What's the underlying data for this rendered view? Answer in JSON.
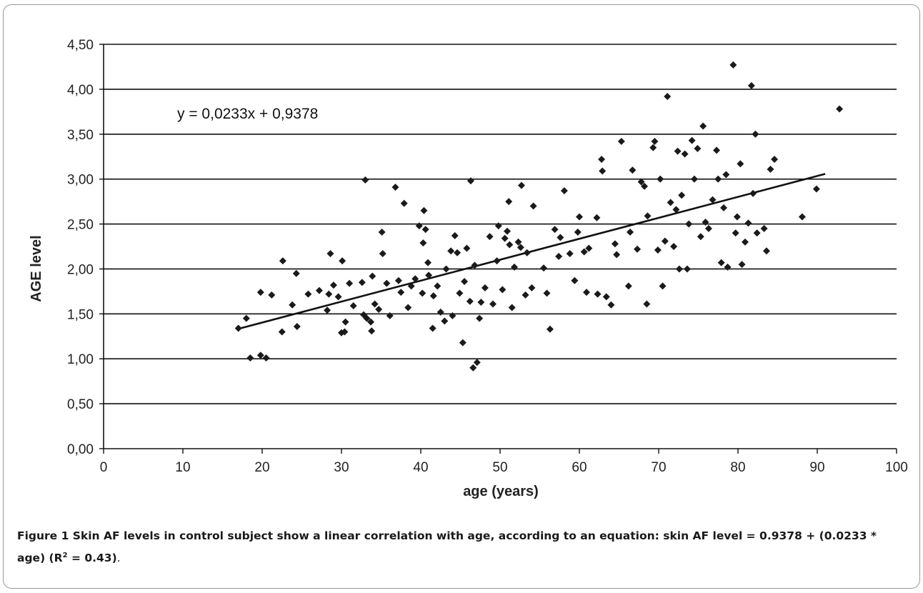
{
  "chart_data": {
    "type": "scatter",
    "xlabel": "age (years)",
    "ylabel": "AGE level",
    "xlim": [
      0,
      100
    ],
    "ylim": [
      0,
      4.5
    ],
    "xticks": [
      "0",
      "10",
      "20",
      "30",
      "40",
      "50",
      "60",
      "70",
      "80",
      "90",
      "100"
    ],
    "yticks": [
      "0,00",
      "0,50",
      "1,00",
      "1,50",
      "2,00",
      "2,50",
      "3,00",
      "3,50",
      "4,00",
      "4,50"
    ],
    "grid": "horizontal",
    "marker": "diamond",
    "marker_color": "#1a1a1a",
    "equation_label": "y = 0,0233x + 0,9378",
    "trendline": {
      "slope": 0.0233,
      "intercept": 0.9378,
      "x_range": [
        17,
        91
      ]
    },
    "points": [
      [
        17,
        1.34
      ],
      [
        18,
        1.45
      ],
      [
        18.5,
        1.01
      ],
      [
        19.8,
        1.04
      ],
      [
        20.5,
        1.01
      ],
      [
        19.8,
        1.74
      ],
      [
        21.2,
        1.71
      ],
      [
        22.5,
        1.3
      ],
      [
        22.6,
        2.09
      ],
      [
        23.8,
        1.6
      ],
      [
        24.4,
        1.36
      ],
      [
        24.3,
        1.95
      ],
      [
        25.8,
        1.72
      ],
      [
        27.2,
        1.76
      ],
      [
        28.2,
        1.54
      ],
      [
        28.4,
        1.72
      ],
      [
        28.6,
        2.17
      ],
      [
        29.0,
        1.82
      ],
      [
        29.6,
        1.69
      ],
      [
        30.1,
        2.09
      ],
      [
        30.0,
        1.29
      ],
      [
        30.5,
        1.41
      ],
      [
        30.4,
        1.3
      ],
      [
        31.0,
        1.84
      ],
      [
        31.5,
        1.59
      ],
      [
        32.6,
        1.85
      ],
      [
        32.8,
        1.49
      ],
      [
        33.0,
        2.99
      ],
      [
        33.2,
        1.45
      ],
      [
        33.7,
        1.41
      ],
      [
        33.8,
        1.31
      ],
      [
        33.9,
        1.92
      ],
      [
        34.2,
        1.61
      ],
      [
        34.7,
        1.55
      ],
      [
        35.1,
        2.41
      ],
      [
        35.2,
        2.17
      ],
      [
        35.7,
        1.84
      ],
      [
        36.1,
        1.48
      ],
      [
        36.8,
        2.91
      ],
      [
        37.2,
        1.87
      ],
      [
        37.5,
        1.74
      ],
      [
        37.9,
        2.73
      ],
      [
        38.4,
        1.57
      ],
      [
        38.8,
        1.81
      ],
      [
        39.3,
        1.89
      ],
      [
        39.8,
        2.48
      ],
      [
        40.2,
        1.73
      ],
      [
        40.3,
        2.29
      ],
      [
        40.6,
        2.44
      ],
      [
        40.4,
        2.65
      ],
      [
        40.9,
        2.07
      ],
      [
        41.0,
        1.93
      ],
      [
        41.5,
        1.34
      ],
      [
        41.6,
        1.7
      ],
      [
        42.1,
        1.81
      ],
      [
        42.5,
        1.52
      ],
      [
        43.0,
        1.42
      ],
      [
        43.2,
        2.0
      ],
      [
        43.8,
        2.2
      ],
      [
        44.0,
        1.48
      ],
      [
        44.3,
        2.37
      ],
      [
        44.6,
        2.18
      ],
      [
        44.9,
        1.73
      ],
      [
        45.3,
        1.18
      ],
      [
        45.5,
        1.86
      ],
      [
        45.8,
        2.23
      ],
      [
        46.2,
        1.64
      ],
      [
        46.3,
        2.98
      ],
      [
        46.6,
        0.9
      ],
      [
        46.8,
        2.04
      ],
      [
        47.1,
        0.96
      ],
      [
        47.4,
        1.45
      ],
      [
        47.6,
        1.63
      ],
      [
        48.1,
        1.79
      ],
      [
        48.7,
        2.36
      ],
      [
        49.1,
        1.61
      ],
      [
        49.6,
        2.09
      ],
      [
        49.8,
        2.48
      ],
      [
        50.3,
        1.77
      ],
      [
        50.6,
        2.34
      ],
      [
        50.9,
        2.42
      ],
      [
        51.1,
        2.75
      ],
      [
        51.2,
        2.27
      ],
      [
        51.5,
        1.57
      ],
      [
        51.8,
        2.02
      ],
      [
        52.3,
        2.3
      ],
      [
        52.6,
        2.24
      ],
      [
        52.7,
        2.93
      ],
      [
        53.2,
        1.71
      ],
      [
        53.4,
        2.18
      ],
      [
        54.0,
        1.79
      ],
      [
        54.2,
        2.7
      ],
      [
        55.5,
        2.01
      ],
      [
        55.9,
        1.73
      ],
      [
        56.3,
        1.33
      ],
      [
        56.9,
        2.44
      ],
      [
        57.4,
        2.14
      ],
      [
        57.6,
        2.35
      ],
      [
        58.1,
        2.87
      ],
      [
        58.8,
        2.17
      ],
      [
        59.4,
        1.87
      ],
      [
        59.8,
        2.41
      ],
      [
        60.0,
        2.58
      ],
      [
        60.6,
        2.19
      ],
      [
        60.9,
        1.74
      ],
      [
        61.2,
        2.23
      ],
      [
        62.2,
        2.57
      ],
      [
        62.3,
        1.72
      ],
      [
        62.8,
        3.22
      ],
      [
        62.9,
        3.09
      ],
      [
        63.4,
        1.69
      ],
      [
        64.0,
        1.6
      ],
      [
        64.5,
        2.28
      ],
      [
        64.7,
        2.16
      ],
      [
        65.3,
        3.42
      ],
      [
        66.2,
        1.81
      ],
      [
        66.4,
        2.41
      ],
      [
        66.7,
        3.1
      ],
      [
        67.3,
        2.22
      ],
      [
        67.8,
        2.97
      ],
      [
        68.2,
        2.92
      ],
      [
        68.5,
        1.61
      ],
      [
        68.6,
        2.59
      ],
      [
        69.3,
        3.35
      ],
      [
        69.5,
        3.42
      ],
      [
        69.9,
        2.21
      ],
      [
        70.2,
        3.0
      ],
      [
        70.5,
        1.81
      ],
      [
        70.8,
        2.31
      ],
      [
        71.1,
        3.92
      ],
      [
        71.5,
        2.74
      ],
      [
        71.9,
        2.25
      ],
      [
        72.2,
        2.66
      ],
      [
        72.4,
        3.31
      ],
      [
        72.6,
        2.0
      ],
      [
        72.9,
        2.82
      ],
      [
        73.3,
        3.28
      ],
      [
        73.6,
        2.0
      ],
      [
        73.8,
        2.5
      ],
      [
        74.2,
        3.43
      ],
      [
        74.5,
        3.0
      ],
      [
        74.9,
        3.34
      ],
      [
        75.3,
        2.36
      ],
      [
        75.6,
        3.59
      ],
      [
        75.9,
        2.52
      ],
      [
        76.3,
        2.45
      ],
      [
        76.8,
        2.77
      ],
      [
        77.3,
        3.32
      ],
      [
        77.5,
        3.0
      ],
      [
        77.9,
        2.07
      ],
      [
        78.2,
        2.68
      ],
      [
        78.5,
        3.05
      ],
      [
        78.7,
        2.02
      ],
      [
        79.4,
        4.27
      ],
      [
        79.7,
        2.4
      ],
      [
        79.9,
        2.58
      ],
      [
        80.3,
        3.17
      ],
      [
        80.5,
        2.05
      ],
      [
        80.9,
        2.3
      ],
      [
        81.3,
        2.51
      ],
      [
        81.7,
        4.04
      ],
      [
        81.9,
        2.84
      ],
      [
        82.2,
        3.5
      ],
      [
        82.4,
        2.4
      ],
      [
        83.3,
        2.45
      ],
      [
        83.6,
        2.2
      ],
      [
        84.1,
        3.11
      ],
      [
        84.6,
        3.22
      ],
      [
        88.1,
        2.58
      ],
      [
        89.9,
        2.89
      ],
      [
        92.8,
        3.78
      ]
    ]
  },
  "caption": {
    "label": "Figure 1",
    "text": " Skin AF levels in control subject show a linear correlation with age, according to an equation: skin AF level = 0.9378 + (0.0233 * age) (R",
    "sup": "2",
    "r2_value": " = 0.43)",
    "end": "."
  }
}
